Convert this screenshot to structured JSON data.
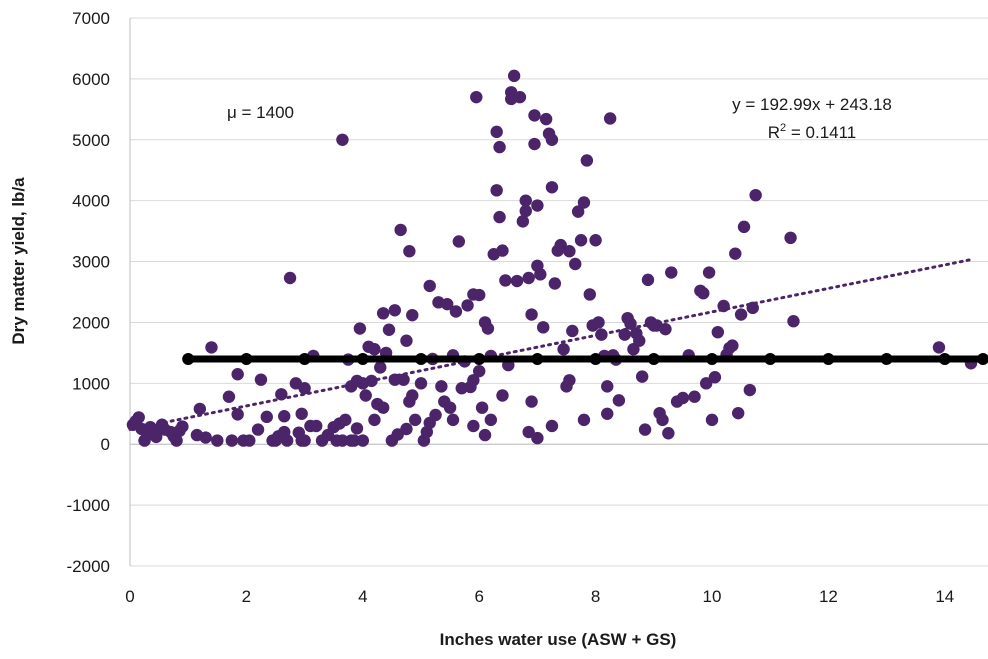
{
  "chart_data": {
    "type": "scatter",
    "xlabel": "Inches water use (ASW + GS)",
    "ylabel": "Dry matter yield, lb/a",
    "xlim": [
      0,
      15
    ],
    "ylim": [
      -2000,
      7000
    ],
    "x_ticks": [
      0,
      2,
      4,
      6,
      8,
      10,
      12,
      14
    ],
    "y_ticks": [
      -2000,
      -1000,
      0,
      1000,
      2000,
      3000,
      4000,
      5000,
      6000,
      7000
    ],
    "x_tick_labels": [
      "0",
      "2",
      "4",
      "6",
      "8",
      "10",
      "12",
      "14"
    ],
    "y_tick_labels": [
      "-2000",
      "-1000",
      "0",
      "1000",
      "2000",
      "3000",
      "4000",
      "5000",
      "6000",
      "7000"
    ],
    "grid": "horizontal",
    "annotations": {
      "mean": "μ = 1400",
      "equation": "y = 192.99x + 243.18",
      "r2_prefix": "R",
      "r2_exp": "2",
      "r2_value": " = 0.1411"
    },
    "colors": {
      "points": "#4b2469",
      "trendline": "#4b2469",
      "mean_line": "#000000",
      "grid": "#d9d9d9"
    },
    "trendline": {
      "slope": 192.99,
      "intercept": 243.18,
      "x_range": [
        0,
        14.5
      ],
      "style": "dotted"
    },
    "mean_line": {
      "y": 1400,
      "x_range": [
        0.95,
        15
      ],
      "x_markers": [
        1,
        2,
        3,
        4,
        5,
        6,
        7,
        8,
        9,
        10,
        11,
        12,
        13,
        14,
        15
      ]
    },
    "series": [
      {
        "points": [
          [
            0.05,
            320
          ],
          [
            0.1,
            380
          ],
          [
            0.15,
            440
          ],
          [
            0.2,
            250
          ],
          [
            0.25,
            60
          ],
          [
            0.3,
            150
          ],
          [
            0.35,
            280
          ],
          [
            0.4,
            220
          ],
          [
            0.45,
            120
          ],
          [
            0.55,
            320
          ],
          [
            0.6,
            240
          ],
          [
            0.7,
            200
          ],
          [
            0.75,
            130
          ],
          [
            0.8,
            60
          ],
          [
            0.85,
            220
          ],
          [
            0.9,
            290
          ],
          [
            1.15,
            150
          ],
          [
            1.2,
            580
          ],
          [
            1.3,
            110
          ],
          [
            1.4,
            1590
          ],
          [
            1.5,
            60
          ],
          [
            1.7,
            780
          ],
          [
            1.75,
            60
          ],
          [
            1.85,
            1150
          ],
          [
            1.85,
            490
          ],
          [
            1.95,
            60
          ],
          [
            2.05,
            60
          ],
          [
            2.2,
            240
          ],
          [
            2.25,
            1060
          ],
          [
            2.35,
            450
          ],
          [
            2.45,
            60
          ],
          [
            2.5,
            60
          ],
          [
            2.55,
            130
          ],
          [
            2.6,
            820
          ],
          [
            2.65,
            460
          ],
          [
            2.65,
            200
          ],
          [
            2.7,
            60
          ],
          [
            2.75,
            2730
          ],
          [
            2.85,
            1000
          ],
          [
            2.9,
            190
          ],
          [
            2.95,
            60
          ],
          [
            2.95,
            500
          ],
          [
            3.0,
            920
          ],
          [
            3.0,
            60
          ],
          [
            3.1,
            300
          ],
          [
            3.15,
            1450
          ],
          [
            3.2,
            300
          ],
          [
            3.3,
            60
          ],
          [
            3.4,
            150
          ],
          [
            3.5,
            280
          ],
          [
            3.55,
            60
          ],
          [
            3.6,
            340
          ],
          [
            3.65,
            60
          ],
          [
            3.65,
            5000
          ],
          [
            3.7,
            400
          ],
          [
            3.75,
            1390
          ],
          [
            3.8,
            60
          ],
          [
            3.8,
            950
          ],
          [
            3.85,
            60
          ],
          [
            3.9,
            1040
          ],
          [
            3.9,
            260
          ],
          [
            3.95,
            1900
          ],
          [
            4.0,
            60
          ],
          [
            4.0,
            1000
          ],
          [
            4.05,
            800
          ],
          [
            4.1,
            1600
          ],
          [
            4.15,
            1040
          ],
          [
            4.2,
            1560
          ],
          [
            4.2,
            400
          ],
          [
            4.25,
            660
          ],
          [
            4.3,
            1260
          ],
          [
            4.35,
            2150
          ],
          [
            4.4,
            1500
          ],
          [
            4.45,
            1880
          ],
          [
            4.5,
            60
          ],
          [
            4.55,
            2200
          ],
          [
            4.55,
            1060
          ],
          [
            4.6,
            160
          ],
          [
            4.65,
            3520
          ],
          [
            4.7,
            1060
          ],
          [
            4.75,
            1700
          ],
          [
            4.8,
            3170
          ],
          [
            4.8,
            700
          ],
          [
            4.85,
            2120
          ],
          [
            4.85,
            800
          ],
          [
            4.9,
            400
          ],
          [
            5.0,
            1000
          ],
          [
            5.05,
            60
          ],
          [
            5.1,
            200
          ],
          [
            5.15,
            2600
          ],
          [
            5.2,
            1400
          ],
          [
            5.25,
            480
          ],
          [
            5.3,
            2330
          ],
          [
            5.35,
            950
          ],
          [
            5.45,
            2300
          ],
          [
            5.5,
            600
          ],
          [
            5.55,
            1460
          ],
          [
            5.6,
            2180
          ],
          [
            5.65,
            3330
          ],
          [
            5.7,
            920
          ],
          [
            5.75,
            1360
          ],
          [
            5.8,
            2280
          ],
          [
            5.85,
            940
          ],
          [
            5.9,
            2460
          ],
          [
            5.9,
            1050
          ],
          [
            5.95,
            5700
          ],
          [
            6.0,
            2450
          ],
          [
            6.0,
            1200
          ],
          [
            6.05,
            600
          ],
          [
            6.1,
            2000
          ],
          [
            6.15,
            1900
          ],
          [
            6.2,
            1450
          ],
          [
            6.25,
            3120
          ],
          [
            6.3,
            4170
          ],
          [
            6.3,
            5130
          ],
          [
            6.35,
            4880
          ],
          [
            6.35,
            3730
          ],
          [
            6.4,
            3180
          ],
          [
            6.45,
            2690
          ],
          [
            6.5,
            1300
          ],
          [
            6.55,
            5670
          ],
          [
            6.55,
            5780
          ],
          [
            6.6,
            6050
          ],
          [
            6.65,
            2680
          ],
          [
            6.7,
            5700
          ],
          [
            6.75,
            3660
          ],
          [
            6.8,
            3830
          ],
          [
            6.8,
            4000
          ],
          [
            6.85,
            2730
          ],
          [
            6.9,
            2130
          ],
          [
            6.95,
            5400
          ],
          [
            6.95,
            4930
          ],
          [
            7.0,
            3920
          ],
          [
            7.0,
            2930
          ],
          [
            7.05,
            2790
          ],
          [
            7.1,
            1920
          ],
          [
            7.15,
            5340
          ],
          [
            7.2,
            5100
          ],
          [
            7.25,
            5000
          ],
          [
            7.25,
            4220
          ],
          [
            7.3,
            2640
          ],
          [
            7.35,
            3180
          ],
          [
            7.4,
            3270
          ],
          [
            7.45,
            1560
          ],
          [
            7.5,
            950
          ],
          [
            7.55,
            3170
          ],
          [
            7.6,
            1860
          ],
          [
            7.65,
            2960
          ],
          [
            7.7,
            3820
          ],
          [
            7.75,
            3350
          ],
          [
            7.8,
            3970
          ],
          [
            7.85,
            4660
          ],
          [
            7.9,
            2460
          ],
          [
            7.95,
            1950
          ],
          [
            8.0,
            3350
          ],
          [
            8.05,
            2000
          ],
          [
            8.1,
            1800
          ],
          [
            8.15,
            1450
          ],
          [
            8.2,
            950
          ],
          [
            8.25,
            5350
          ],
          [
            8.3,
            1460
          ],
          [
            8.35,
            1390
          ],
          [
            8.4,
            720
          ],
          [
            8.5,
            1800
          ],
          [
            8.55,
            2070
          ],
          [
            8.6,
            1980
          ],
          [
            8.65,
            1560
          ],
          [
            8.7,
            1820
          ],
          [
            8.75,
            1700
          ],
          [
            8.8,
            1110
          ],
          [
            8.85,
            240
          ],
          [
            8.9,
            2700
          ],
          [
            8.95,
            2000
          ],
          [
            9.0,
            1950
          ],
          [
            9.05,
            1950
          ],
          [
            9.1,
            510
          ],
          [
            9.15,
            400
          ],
          [
            9.2,
            1890
          ],
          [
            9.25,
            180
          ],
          [
            9.3,
            2820
          ],
          [
            9.4,
            700
          ],
          [
            9.5,
            760
          ],
          [
            9.6,
            1460
          ],
          [
            9.7,
            780
          ],
          [
            9.8,
            2520
          ],
          [
            9.85,
            2480
          ],
          [
            9.9,
            1000
          ],
          [
            9.95,
            2820
          ],
          [
            10.0,
            400
          ],
          [
            10.05,
            1100
          ],
          [
            10.1,
            1840
          ],
          [
            10.2,
            2270
          ],
          [
            10.25,
            1470
          ],
          [
            10.3,
            1580
          ],
          [
            10.35,
            1620
          ],
          [
            10.4,
            3130
          ],
          [
            10.45,
            510
          ],
          [
            10.5,
            2130
          ],
          [
            10.55,
            3570
          ],
          [
            10.65,
            890
          ],
          [
            10.7,
            2240
          ],
          [
            10.75,
            4090
          ],
          [
            11.35,
            3390
          ],
          [
            11.4,
            2020
          ],
          [
            13.9,
            1590
          ],
          [
            14.45,
            1330
          ],
          [
            5.15,
            350
          ],
          [
            5.4,
            700
          ],
          [
            5.9,
            300
          ],
          [
            6.1,
            150
          ],
          [
            6.2,
            400
          ],
          [
            6.85,
            200
          ],
          [
            7.0,
            100
          ],
          [
            7.25,
            300
          ],
          [
            7.8,
            400
          ],
          [
            8.2,
            500
          ],
          [
            4.35,
            600
          ],
          [
            4.75,
            250
          ],
          [
            5.55,
            400
          ],
          [
            6.4,
            800
          ],
          [
            6.9,
            700
          ],
          [
            7.55,
            1050
          ]
        ]
      }
    ]
  }
}
